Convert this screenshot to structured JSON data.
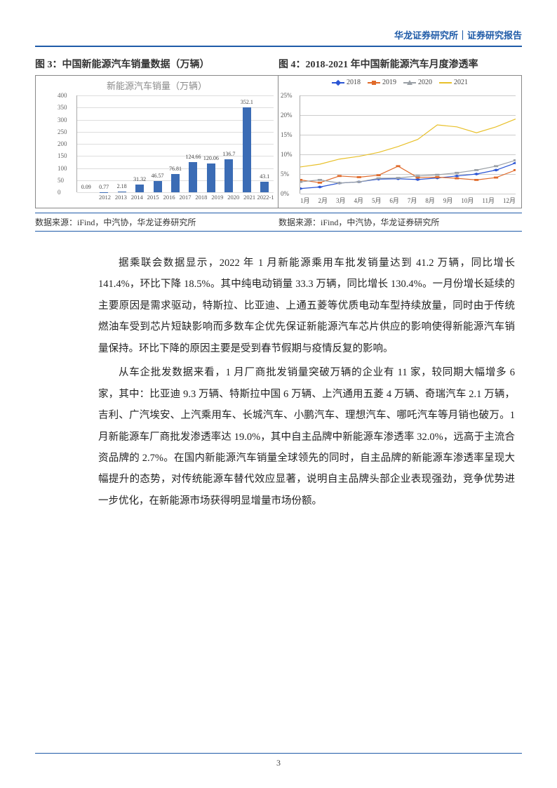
{
  "header": {
    "text": "华龙证券研究所｜证券研究报告"
  },
  "fig3": {
    "title": "图 3：中国新能源汽车销量数据（万辆）",
    "subtitle": "新能源汽车销量（万辆）",
    "source": "数据来源：iFind，中汽协，华龙证券研究所",
    "type": "bar",
    "categories": [
      "2012",
      "2013",
      "2014",
      "2015",
      "2016",
      "2017",
      "2018",
      "2019",
      "2020",
      "2021",
      "2022-1"
    ],
    "values": [
      0.09,
      0.77,
      2.18,
      31.32,
      46.57,
      76.81,
      124.66,
      120.06,
      136.7,
      352.1,
      43.1
    ],
    "bar_color": "#3b6cb5",
    "ylim": [
      0,
      400
    ],
    "ytick_step": 50,
    "grid_color": "#dddddd",
    "label_color": "#555555"
  },
  "fig4": {
    "title": "图 4：2018-2021 年中国新能源汽车月度渗透率",
    "source": "数据来源：iFind，中汽协，华龙证券研究所",
    "type": "line",
    "x_labels": [
      "1月",
      "2月",
      "3月",
      "4月",
      "5月",
      "6月",
      "7月",
      "8月",
      "9月",
      "10月",
      "11月",
      "12月"
    ],
    "ylim": [
      0,
      25
    ],
    "ytick_step": 5,
    "y_suffix": "%",
    "grid_color": "#cccccc",
    "series": [
      {
        "name": "2018",
        "color": "#2b55d4",
        "marker": "diamond",
        "values": [
          1.3,
          1.7,
          2.7,
          3.0,
          3.7,
          3.8,
          3.6,
          4.0,
          4.5,
          5.0,
          6.0,
          7.8
        ]
      },
      {
        "name": "2019",
        "color": "#e06a2a",
        "marker": "square",
        "values": [
          3.5,
          2.8,
          4.5,
          4.2,
          4.7,
          7.0,
          4.1,
          4.2,
          3.9,
          3.5,
          4.1,
          6.0
        ]
      },
      {
        "name": "2020",
        "color": "#9aa0a6",
        "marker": "triangle",
        "values": [
          3.0,
          3.5,
          2.7,
          3.0,
          3.9,
          4.0,
          4.5,
          4.8,
          5.3,
          6.0,
          7.0,
          8.5
        ]
      },
      {
        "name": "2021",
        "color": "#e8c02a",
        "marker": "none",
        "values": [
          6.8,
          7.5,
          8.8,
          9.5,
          10.5,
          12.0,
          13.8,
          17.5,
          17.0,
          15.5,
          17.0,
          19.0
        ]
      }
    ]
  },
  "paragraphs": {
    "p1": "据乘联会数据显示，2022 年 1 月新能源乘用车批发销量达到 41.2 万辆，同比增长 141.4%，环比下降 18.5%。其中纯电动销量 33.3 万辆，同比增长 130.4%。一月份增长延续的主要原因是需求驱动，特斯拉、比亚迪、上通五菱等优质电动车型持续放量，同时由于传统燃油车受到芯片短缺影响而多数车企优先保证新能源汽车芯片供应的影响使得新能源汽车销量保持。环比下降的原因主要是受到春节假期与疫情反复的影响。",
    "p2": "从车企批发数据来看，1 月厂商批发销量突破万辆的企业有 11 家，较同期大幅增多 6 家，其中：比亚迪 9.3 万辆、特斯拉中国 6 万辆、上汽通用五菱 4 万辆、奇瑞汽车 2.1 万辆，吉利、广汽埃安、上汽乘用车、长城汽车、小鹏汽车、理想汽车、哪吒汽车等月销也破万。1 月新能源车厂商批发渗透率达 19.0%，其中自主品牌中新能源车渗透率 32.0%，远高于主流合资品牌的 2.7%。在国内新能源汽车销量全球领先的同时，自主品牌的新能源车渗透率呈现大幅提升的态势，对传统能源车替代效应显著，说明自主品牌头部企业表现强劲，竞争优势进一步优化，在新能源市场获得明显增量市场份额。"
  },
  "page_number": "3"
}
